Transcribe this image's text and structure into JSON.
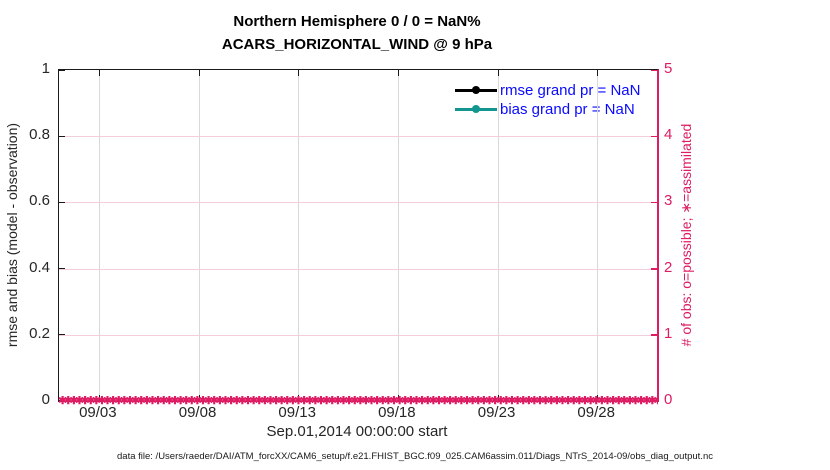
{
  "figure": {
    "footer_note": "data file: /Users/raeder/DAI/ATM_forcXX/CAM6_setup/f.e21.FHIST_BGC.f09_025.CAM6assim.011/Diags_NTrS_2014-09/obs_diag_output.nc"
  },
  "chart_data": {
    "type": "line",
    "title": "Northern Hemisphere 0 / 0 = NaN%",
    "subtitle": "ACARS_HORIZONTAL_WIND @ 9 hPa",
    "xlabel": "Sep.01,2014 00:00:00 start",
    "x_axis": {
      "start_label": "Sep.01,2014 00:00:00",
      "range_days": [
        0,
        30
      ],
      "tick_positions_days": [
        2,
        7,
        12,
        17,
        22,
        27
      ],
      "tick_labels": [
        "09/03",
        "09/08",
        "09/13",
        "09/18",
        "09/23",
        "09/28"
      ]
    },
    "left_axis": {
      "label": "rmse and bias (model - observation)",
      "range": [
        0,
        1
      ],
      "tick_values": [
        0,
        0.2,
        0.4,
        0.6,
        0.8,
        1
      ],
      "tick_labels": [
        "0",
        "0.2",
        "0.4",
        "0.6",
        "0.8",
        "1"
      ]
    },
    "right_axis": {
      "label": "# of obs: o=possible; ∗=assimilated",
      "range": [
        0,
        5
      ],
      "tick_values": [
        0,
        1,
        2,
        3,
        4,
        5
      ],
      "tick_labels": [
        "0",
        "1",
        "2",
        "3",
        "4",
        "5"
      ],
      "color": "#dd1c64"
    },
    "series": [
      {
        "name": "rmse grand pr = NaN",
        "color": "#000000",
        "marker": "circle",
        "values": "NaN (nothing plotted)"
      },
      {
        "name": "bias grand pr = NaN",
        "color": "#12968f",
        "marker": "circle",
        "values": "NaN (nothing plotted)"
      },
      {
        "name": "assimilated observation count (right axis)",
        "marker": "✱",
        "color": "#dd1c64",
        "value_at_all_times": 0,
        "time_span_days": [
          0,
          30
        ],
        "note": "dense ∗ markers plotted at 0 across entire x-range"
      }
    ],
    "legend": {
      "entries": [
        "rmse grand pr = NaN",
        "bias grand pr = NaN"
      ],
      "position": "upper right",
      "text_color": "#0a0aff"
    },
    "grid": true,
    "colors": {
      "right_axis_pink": "#dd1c64",
      "bias_teal": "#12968f",
      "rmse_black": "#000000",
      "legend_text_blue": "#0a0aff",
      "grid_vertical": "#d9d9d9",
      "grid_horizontal_pink": "#f2cedd"
    }
  }
}
